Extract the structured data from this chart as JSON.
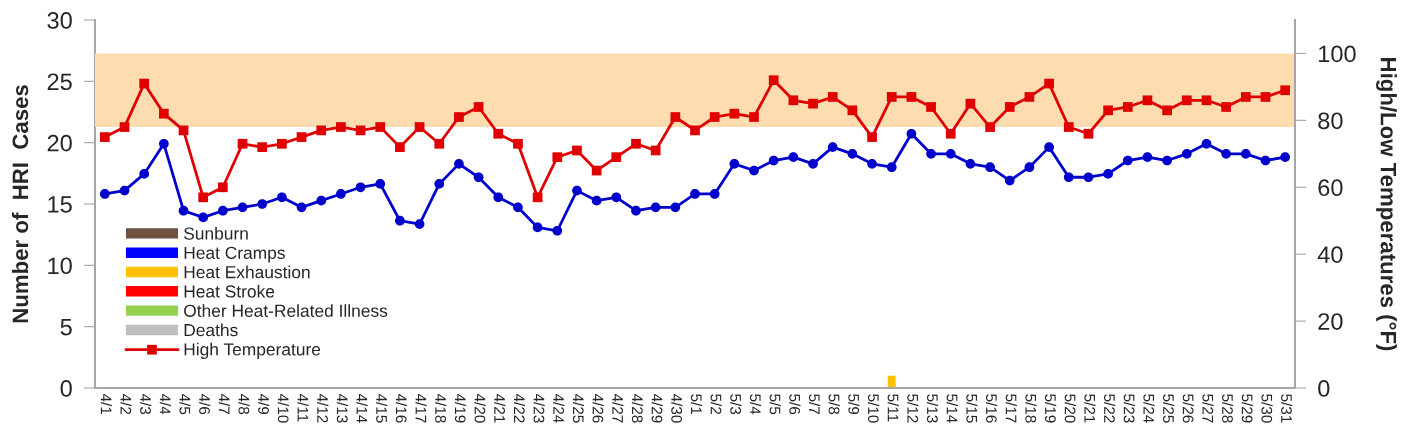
{
  "chart_data": {
    "type": "bar",
    "stacked": true,
    "legend": "lower left",
    "ylabel": "Number of  HRI  Cases",
    "y2label": "High/Low Temperatures (°F)",
    "categories": [
      "4/1",
      "4/2",
      "4/3",
      "4/4",
      "4/5",
      "4/6",
      "4/7",
      "4/8",
      "4/9",
      "4/10",
      "4/11",
      "4/12",
      "4/13",
      "4/14",
      "4/15",
      "4/16",
      "4/17",
      "4/18",
      "4/19",
      "4/20",
      "4/21",
      "4/22",
      "4/23",
      "4/24",
      "4/25",
      "4/26",
      "4/27",
      "4/28",
      "4/29",
      "4/30",
      "5/1",
      "5/2",
      "5/3",
      "5/4",
      "5/5",
      "5/6",
      "5/7",
      "5/8",
      "5/9",
      "5/10",
      "5/11",
      "5/12",
      "5/13",
      "5/14",
      "5/15",
      "5/16",
      "5/17",
      "5/18",
      "5/19",
      "5/20",
      "5/21",
      "5/22",
      "5/23",
      "5/24",
      "5/25",
      "5/26",
      "5/27",
      "5/28",
      "5/29",
      "5/30",
      "5/31"
    ],
    "ylim": [
      0,
      30
    ],
    "yticks": [
      0,
      5,
      10,
      15,
      20,
      25,
      30
    ],
    "y2lim": [
      0,
      110
    ],
    "y2ticks": [
      0,
      20,
      40,
      60,
      80,
      100
    ],
    "bands": [
      {
        "axis": "y2",
        "from": 78,
        "to": 100,
        "color": "#fddcb0"
      }
    ],
    "series": [
      {
        "name": "Sunburn",
        "color": "#70503f",
        "values": [
          0,
          0,
          0,
          0,
          0,
          0,
          0,
          0,
          0,
          0,
          0,
          0,
          0,
          0,
          0,
          0,
          0,
          0,
          0,
          0,
          0,
          0,
          0,
          0,
          0,
          0,
          0,
          0,
          0,
          0,
          0,
          0,
          0,
          0,
          0,
          0,
          0,
          0,
          0,
          0,
          0,
          0,
          0,
          0,
          0,
          0,
          0,
          0,
          0,
          0,
          0,
          0,
          0,
          0,
          0,
          0,
          0,
          0,
          0,
          0,
          0
        ]
      },
      {
        "name": "Heat Cramps",
        "color": "#0000ff",
        "values": [
          0,
          0,
          0,
          0,
          0,
          0,
          0,
          0,
          0,
          0,
          0,
          0,
          0,
          0,
          0,
          0,
          0,
          0,
          0,
          0,
          0,
          0,
          0,
          0,
          0,
          0,
          0,
          0,
          0,
          0,
          0,
          0,
          0,
          0,
          0,
          0,
          0,
          0,
          0,
          0,
          0,
          0,
          0,
          0,
          0,
          0,
          0,
          0,
          0,
          0,
          0,
          0,
          0,
          0,
          0,
          0,
          0,
          0,
          0,
          0,
          0
        ]
      },
      {
        "name": "Heat Exhaustion",
        "color": "#ffc000",
        "values": [
          0,
          0,
          0,
          0,
          0,
          0,
          0,
          0,
          0,
          0,
          0,
          0,
          0,
          0,
          0,
          0,
          0,
          0,
          0,
          0,
          0,
          0,
          0,
          0,
          0,
          0,
          0,
          0,
          0,
          0,
          0,
          0,
          0,
          0,
          0,
          0,
          0,
          0,
          0,
          0,
          1,
          0,
          0,
          0,
          0,
          0,
          0,
          0,
          0,
          0,
          0,
          0,
          0,
          0,
          0,
          0,
          0,
          0,
          0,
          0,
          0
        ]
      },
      {
        "name": "Heat Stroke",
        "color": "#ff0000",
        "values": [
          0,
          0,
          0,
          0,
          0,
          0,
          0,
          0,
          0,
          0,
          0,
          0,
          0,
          0,
          0,
          0,
          0,
          0,
          0,
          0,
          0,
          0,
          0,
          0,
          0,
          0,
          0,
          0,
          0,
          0,
          0,
          0,
          0,
          0,
          0,
          0,
          0,
          0,
          0,
          0,
          0,
          0,
          0,
          0,
          0,
          0,
          0,
          0,
          0,
          0,
          0,
          0,
          0,
          0,
          0,
          0,
          0,
          0,
          0,
          0,
          0
        ]
      },
      {
        "name": "Other Heat-Related Illness",
        "color": "#92d050",
        "values": [
          0,
          0,
          0,
          0,
          0,
          0,
          0,
          0,
          0,
          0,
          0,
          0,
          0,
          0,
          0,
          0,
          0,
          0,
          0,
          0,
          0,
          0,
          0,
          0,
          0,
          0,
          0,
          0,
          0,
          0,
          0,
          0,
          0,
          0,
          0,
          0,
          0,
          0,
          0,
          0,
          0,
          0,
          0,
          0,
          0,
          0,
          0,
          0,
          0,
          0,
          0,
          0,
          0,
          0,
          0,
          0,
          0,
          0,
          0,
          0,
          0
        ]
      },
      {
        "name": "Deaths",
        "color": "#bfbfbf",
        "values": [
          0,
          0,
          0,
          0,
          0,
          0,
          0,
          0,
          0,
          0,
          0,
          0,
          0,
          0,
          0,
          0,
          0,
          0,
          0,
          0,
          0,
          0,
          0,
          0,
          0,
          0,
          0,
          0,
          0,
          0,
          0,
          0,
          0,
          0,
          0,
          0,
          0,
          0,
          0,
          0,
          0,
          0,
          0,
          0,
          0,
          0,
          0,
          0,
          0,
          0,
          0,
          0,
          0,
          0,
          0,
          0,
          0,
          0,
          0,
          0,
          0
        ]
      },
      {
        "name": "High Temperature",
        "type": "line",
        "axis": "y2",
        "marker": "square",
        "line_style": "solid",
        "color": "#e00000",
        "values": [
          75,
          78,
          91,
          82,
          77,
          57,
          60,
          73,
          72,
          73,
          75,
          77,
          78,
          77,
          78,
          72,
          78,
          73,
          81,
          84,
          76,
          73,
          57,
          69,
          71,
          65,
          69,
          73,
          71,
          81,
          77,
          81,
          82,
          81,
          92,
          86,
          85,
          87,
          83,
          75,
          87,
          87,
          84,
          76,
          85,
          78,
          84,
          87,
          91,
          78,
          76,
          83,
          84,
          86,
          83,
          86,
          86,
          84,
          87,
          87,
          89
        ]
      },
      {
        "type": "line",
        "axis": "y2",
        "marker": "circle",
        "line_style": "solid",
        "color": "#0000cc",
        "values": [
          58,
          59,
          64,
          73,
          53,
          51,
          53,
          54,
          55,
          57,
          54,
          56,
          58,
          60,
          61,
          50,
          49,
          61,
          67,
          63,
          57,
          54,
          48,
          47,
          59,
          56,
          57,
          53,
          54,
          54,
          58,
          58,
          67,
          65,
          68,
          69,
          67,
          72,
          70,
          67,
          66,
          76,
          70,
          70,
          67,
          66,
          62,
          66,
          72,
          63,
          63,
          64,
          68,
          69,
          68,
          70,
          73,
          70,
          70,
          68,
          69
        ]
      }
    ]
  }
}
